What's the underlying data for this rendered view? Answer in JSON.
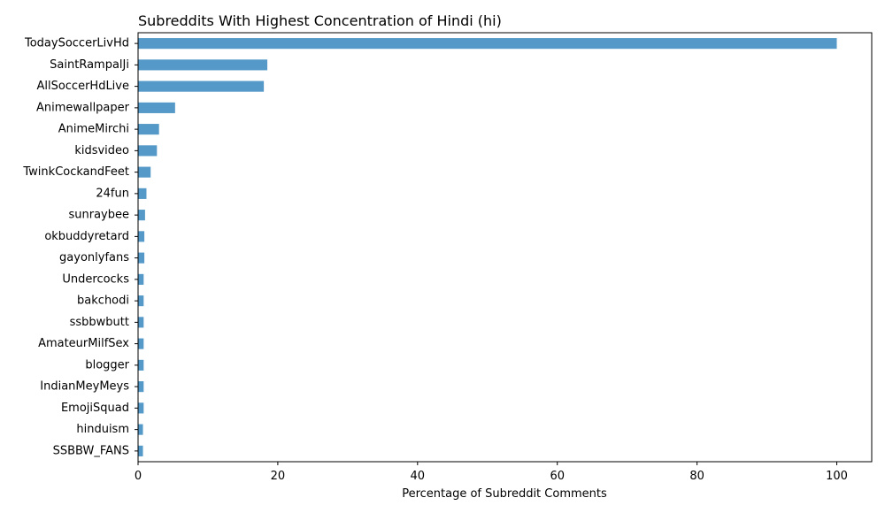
{
  "chart_data": {
    "type": "bar",
    "orientation": "horizontal",
    "title": "Subreddits With Highest Concentration of Hindi (hi)",
    "xlabel": "Percentage of Subreddit Comments",
    "ylabel": "",
    "xlim": [
      0,
      105
    ],
    "xticks": [
      0,
      20,
      40,
      60,
      80,
      100
    ],
    "grid": false,
    "legend": "none",
    "bar_color": "#5499c7",
    "categories": [
      "TodaySoccerLivHd",
      "SaintRampalJi",
      "AllSoccerHdLive",
      "Animewallpaper",
      "AnimeMirchi",
      "kidsvideo",
      "TwinkCockandFeet",
      "24fun",
      "sunraybee",
      "okbuddyretard",
      "gayonlyfans",
      "Undercocks",
      "bakchodi",
      "ssbbwbutt",
      "AmateurMilfSex",
      "blogger",
      "IndianMeyMeys",
      "EmojiSquad",
      "hinduism",
      "SSBBW_FANS"
    ],
    "values": [
      100,
      18.5,
      18.0,
      5.3,
      3.0,
      2.7,
      1.8,
      1.2,
      1.0,
      0.9,
      0.9,
      0.8,
      0.8,
      0.8,
      0.8,
      0.8,
      0.8,
      0.8,
      0.7,
      0.7
    ]
  }
}
